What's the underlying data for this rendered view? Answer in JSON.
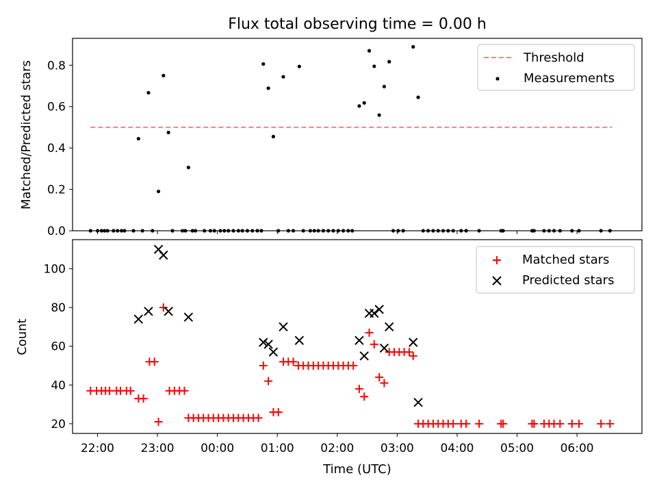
{
  "title": "Flux total observing time = 0.00 h",
  "chart_data": [
    {
      "type": "scatter",
      "ylabel": "Matched/Predicted stars",
      "ylim": [
        0,
        0.93
      ],
      "yticks": [
        0.0,
        0.2,
        0.4,
        0.6,
        0.8
      ],
      "ytick_labels": [
        "0.0",
        "0.2",
        "0.4",
        "0.6",
        "0.8"
      ],
      "xlim": [
        "21:35",
        "07:05"
      ],
      "legend_position": "top-right",
      "threshold": {
        "name": "Threshold",
        "value": 0.5,
        "x_range": [
          "21:53",
          "06:35"
        ],
        "color": "#ff7f7f"
      },
      "series": [
        {
          "name": "Measurements",
          "color": "#000000",
          "points": [
            [
              "21:53",
              0
            ],
            [
              "22:00",
              0
            ],
            [
              "22:04",
              0
            ],
            [
              "22:07",
              0
            ],
            [
              "22:10",
              0
            ],
            [
              "22:16",
              0
            ],
            [
              "22:20",
              0
            ],
            [
              "22:24",
              0
            ],
            [
              "22:27",
              0
            ],
            [
              "22:36",
              0
            ],
            [
              "22:45",
              0
            ],
            [
              "22:55",
              0
            ],
            [
              "22:41",
              0.445
            ],
            [
              "22:51",
              0.667
            ],
            [
              "23:01",
              0.19
            ],
            [
              "23:06",
              0.75
            ],
            [
              "23:11",
              0.475
            ],
            [
              "23:31",
              0.306
            ],
            [
              "23:15",
              0
            ],
            [
              "23:25",
              0
            ],
            [
              "23:28",
              0
            ],
            [
              "23:35",
              0
            ],
            [
              "23:38",
              0
            ],
            [
              "23:47",
              0
            ],
            [
              "23:53",
              0
            ],
            [
              "23:57",
              0
            ],
            [
              "00:03",
              0
            ],
            [
              "00:07",
              0
            ],
            [
              "00:11",
              0
            ],
            [
              "00:16",
              0
            ],
            [
              "00:21",
              0
            ],
            [
              "00:25",
              0
            ],
            [
              "00:30",
              0
            ],
            [
              "00:35",
              0
            ],
            [
              "00:40",
              0
            ],
            [
              "00:44",
              0
            ],
            [
              "00:46",
              0.806
            ],
            [
              "00:51",
              0.689
            ],
            [
              "00:56",
              0.455
            ],
            [
              "01:06",
              0.744
            ],
            [
              "01:22",
              0.794
            ],
            [
              "01:01",
              0
            ],
            [
              "01:11",
              0
            ],
            [
              "01:16",
              0
            ],
            [
              "01:26",
              0
            ],
            [
              "01:33",
              0
            ],
            [
              "01:37",
              0
            ],
            [
              "01:41",
              0
            ],
            [
              "01:46",
              0
            ],
            [
              "01:51",
              0
            ],
            [
              "01:56",
              0
            ],
            [
              "02:01",
              0
            ],
            [
              "02:06",
              0
            ],
            [
              "02:11",
              0
            ],
            [
              "02:15",
              0
            ],
            [
              "02:22",
              0.603
            ],
            [
              "02:27",
              0.618
            ],
            [
              "02:32",
              0.87
            ],
            [
              "02:37",
              0.795
            ],
            [
              "02:42",
              0.559
            ],
            [
              "02:47",
              0.697
            ],
            [
              "02:52",
              0.817
            ],
            [
              "03:16",
              0.889
            ],
            [
              "03:21",
              0.645
            ],
            [
              "02:56",
              0
            ],
            [
              "03:01",
              0
            ],
            [
              "03:06",
              0
            ],
            [
              "03:26",
              0
            ],
            [
              "03:31",
              0
            ],
            [
              "03:36",
              0
            ],
            [
              "03:41",
              0
            ],
            [
              "03:46",
              0
            ],
            [
              "03:51",
              0
            ],
            [
              "03:56",
              0
            ],
            [
              "04:04",
              0
            ],
            [
              "04:09",
              0
            ],
            [
              "04:22",
              0
            ],
            [
              "04:44",
              0
            ],
            [
              "04:46",
              0
            ],
            [
              "05:15",
              0
            ],
            [
              "05:17",
              0
            ],
            [
              "05:27",
              0
            ],
            [
              "05:32",
              0
            ],
            [
              "05:37",
              0
            ],
            [
              "05:43",
              0
            ],
            [
              "05:55",
              0
            ],
            [
              "06:02",
              0
            ],
            [
              "06:24",
              0
            ],
            [
              "06:33",
              0
            ]
          ]
        }
      ]
    },
    {
      "type": "scatter",
      "xlabel": "Time (UTC)",
      "ylabel": "Count",
      "ylim": [
        15,
        115
      ],
      "yticks": [
        20,
        40,
        60,
        80,
        100
      ],
      "ytick_labels": [
        "20",
        "40",
        "60",
        "80",
        "100"
      ],
      "xlim": [
        "21:35",
        "07:05"
      ],
      "xticks": [
        "22:00",
        "23:00",
        "00:00",
        "01:00",
        "02:00",
        "03:00",
        "04:00",
        "05:00",
        "06:00"
      ],
      "xtick_labels": [
        "22:00",
        "23:00",
        "00:00",
        "01:00",
        "02:00",
        "03:00",
        "04:00",
        "05:00",
        "06:00"
      ],
      "legend_position": "top-right",
      "series": [
        {
          "name": "Matched stars",
          "marker": "+",
          "color": "#ff0000",
          "points": [
            [
              "21:53",
              37
            ],
            [
              "21:59",
              37
            ],
            [
              "22:04",
              37
            ],
            [
              "22:08",
              37
            ],
            [
              "22:12",
              37
            ],
            [
              "22:19",
              37
            ],
            [
              "22:23",
              37
            ],
            [
              "22:29",
              37
            ],
            [
              "22:33",
              37
            ],
            [
              "22:41",
              33
            ],
            [
              "22:46",
              33
            ],
            [
              "22:52",
              52
            ],
            [
              "22:57",
              52
            ],
            [
              "23:01",
              21
            ],
            [
              "23:06",
              80
            ],
            [
              "23:12",
              37
            ],
            [
              "23:17",
              37
            ],
            [
              "23:22",
              37
            ],
            [
              "23:27",
              37
            ],
            [
              "23:31",
              23
            ],
            [
              "23:36",
              23
            ],
            [
              "23:41",
              23
            ],
            [
              "23:46",
              23
            ],
            [
              "23:51",
              23
            ],
            [
              "23:56",
              23
            ],
            [
              "00:01",
              23
            ],
            [
              "00:06",
              23
            ],
            [
              "00:11",
              23
            ],
            [
              "00:16",
              23
            ],
            [
              "00:21",
              23
            ],
            [
              "00:26",
              23
            ],
            [
              "00:31",
              23
            ],
            [
              "00:36",
              23
            ],
            [
              "00:41",
              23
            ],
            [
              "00:46",
              50
            ],
            [
              "00:51",
              42
            ],
            [
              "00:56",
              26
            ],
            [
              "01:01",
              26
            ],
            [
              "01:06",
              52
            ],
            [
              "01:11",
              52
            ],
            [
              "01:16",
              52
            ],
            [
              "01:21",
              50
            ],
            [
              "01:26",
              50
            ],
            [
              "01:31",
              50
            ],
            [
              "01:36",
              50
            ],
            [
              "01:41",
              50
            ],
            [
              "01:46",
              50
            ],
            [
              "01:51",
              50
            ],
            [
              "01:56",
              50
            ],
            [
              "02:01",
              50
            ],
            [
              "02:06",
              50
            ],
            [
              "02:11",
              50
            ],
            [
              "02:16",
              50
            ],
            [
              "02:22",
              38
            ],
            [
              "02:27",
              34
            ],
            [
              "02:32",
              67
            ],
            [
              "02:37",
              61
            ],
            [
              "02:42",
              44
            ],
            [
              "02:47",
              41
            ],
            [
              "02:52",
              57
            ],
            [
              "02:57",
              57
            ],
            [
              "03:02",
              57
            ],
            [
              "03:07",
              57
            ],
            [
              "03:12",
              57
            ],
            [
              "03:16",
              55
            ],
            [
              "03:21",
              20
            ],
            [
              "03:26",
              20
            ],
            [
              "03:31",
              20
            ],
            [
              "03:36",
              20
            ],
            [
              "03:41",
              20
            ],
            [
              "03:46",
              20
            ],
            [
              "03:51",
              20
            ],
            [
              "03:56",
              20
            ],
            [
              "04:04",
              20
            ],
            [
              "04:09",
              20
            ],
            [
              "04:22",
              20
            ],
            [
              "04:44",
              20
            ],
            [
              "04:46",
              20
            ],
            [
              "05:15",
              20
            ],
            [
              "05:17",
              20
            ],
            [
              "05:27",
              20
            ],
            [
              "05:32",
              20
            ],
            [
              "05:37",
              20
            ],
            [
              "05:43",
              20
            ],
            [
              "05:55",
              20
            ],
            [
              "06:02",
              20
            ],
            [
              "06:24",
              20
            ],
            [
              "06:33",
              20
            ]
          ]
        },
        {
          "name": "Predicted stars",
          "marker": "x",
          "color": "#000000",
          "points": [
            [
              "22:41",
              74
            ],
            [
              "22:51",
              78
            ],
            [
              "23:01",
              110
            ],
            [
              "23:06",
              107
            ],
            [
              "23:11",
              78
            ],
            [
              "23:31",
              75
            ],
            [
              "00:46",
              62
            ],
            [
              "00:51",
              61
            ],
            [
              "00:56",
              57
            ],
            [
              "01:06",
              70
            ],
            [
              "01:22",
              63
            ],
            [
              "02:22",
              63
            ],
            [
              "02:27",
              55
            ],
            [
              "02:32",
              77
            ],
            [
              "02:37",
              77
            ],
            [
              "02:42",
              79
            ],
            [
              "02:47",
              59
            ],
            [
              "02:52",
              70
            ],
            [
              "03:16",
              62
            ],
            [
              "03:21",
              31
            ]
          ]
        }
      ]
    }
  ]
}
